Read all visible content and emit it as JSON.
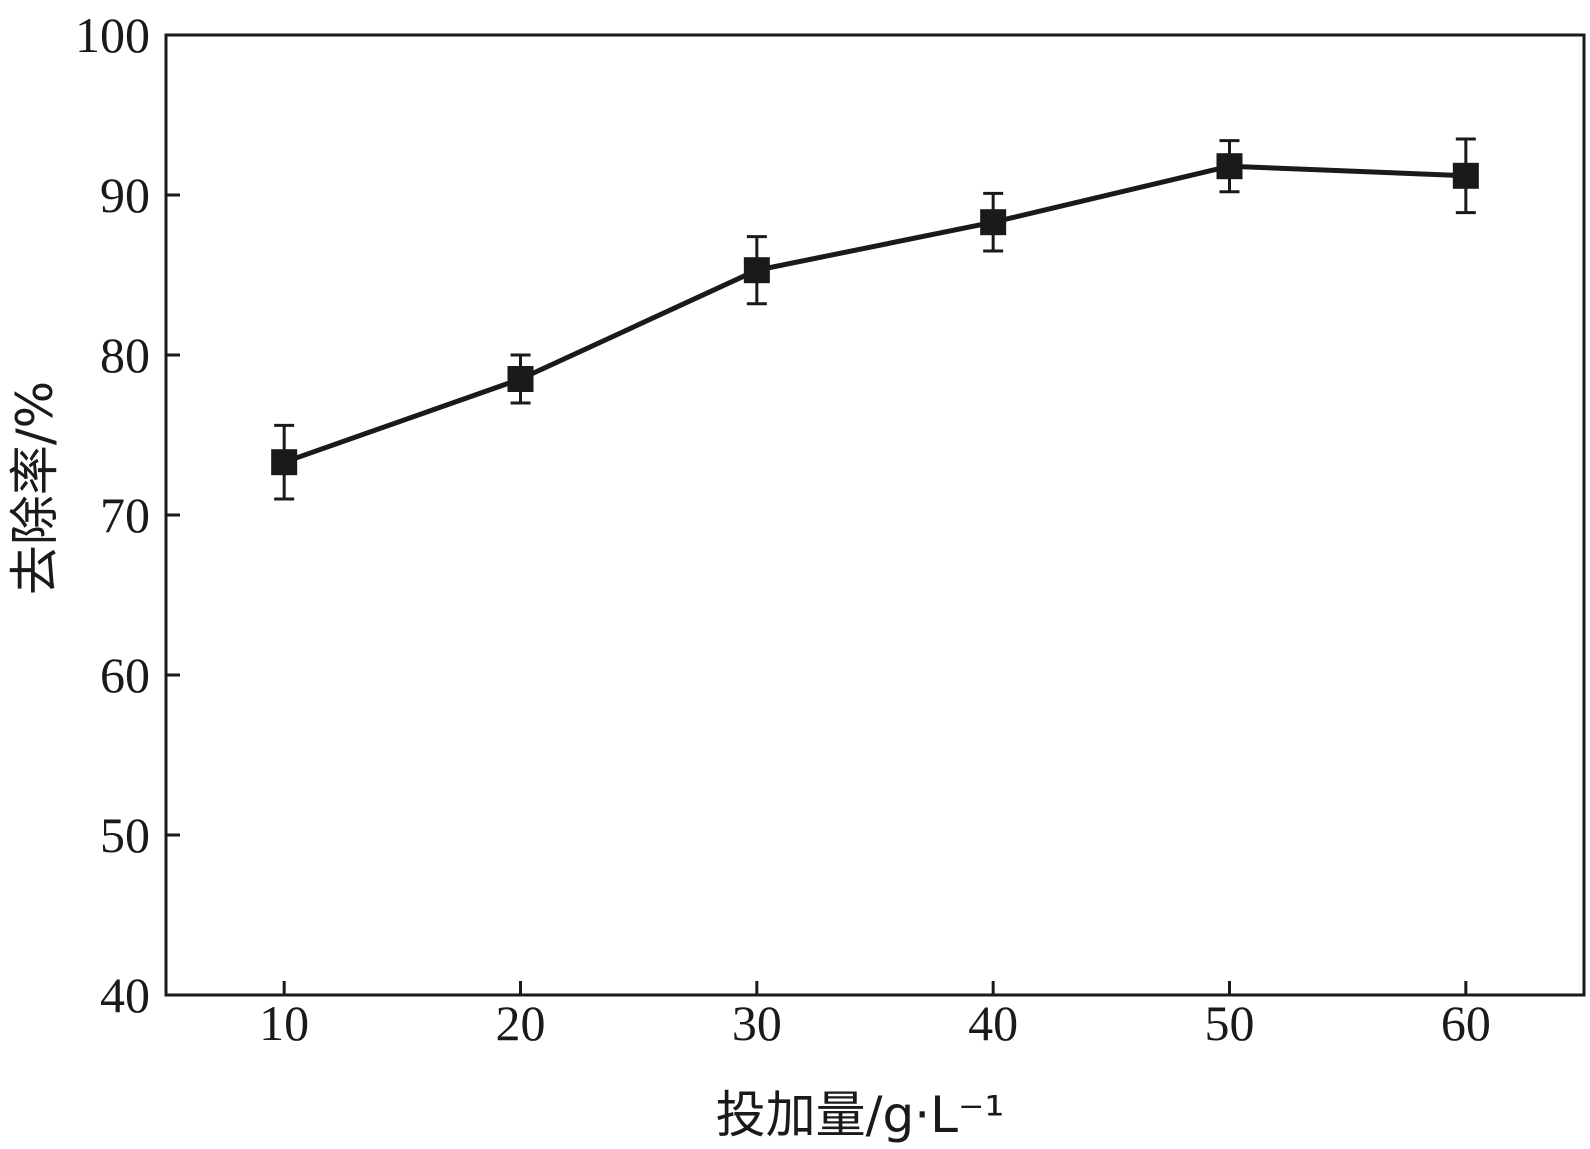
{
  "chart_data": {
    "type": "line",
    "title": "",
    "xlabel": "投加量/g·L⁻¹",
    "ylabel": "去除率/%",
    "x": [
      10,
      20,
      30,
      40,
      50,
      60
    ],
    "xticks": [
      "10",
      "20",
      "30",
      "40",
      "50",
      "60"
    ],
    "yticks": [
      "40",
      "50",
      "60",
      "70",
      "80",
      "90",
      "100"
    ],
    "xlim": [
      5,
      65
    ],
    "ylim": [
      40,
      100
    ],
    "grid": false,
    "series": [
      {
        "values": [
          73.3,
          78.5,
          85.3,
          88.3,
          91.8,
          91.2
        ],
        "error": [
          2.3,
          1.5,
          2.1,
          1.8,
          1.6,
          2.3
        ],
        "marker": "square",
        "color": "#1a1a1a"
      }
    ]
  }
}
